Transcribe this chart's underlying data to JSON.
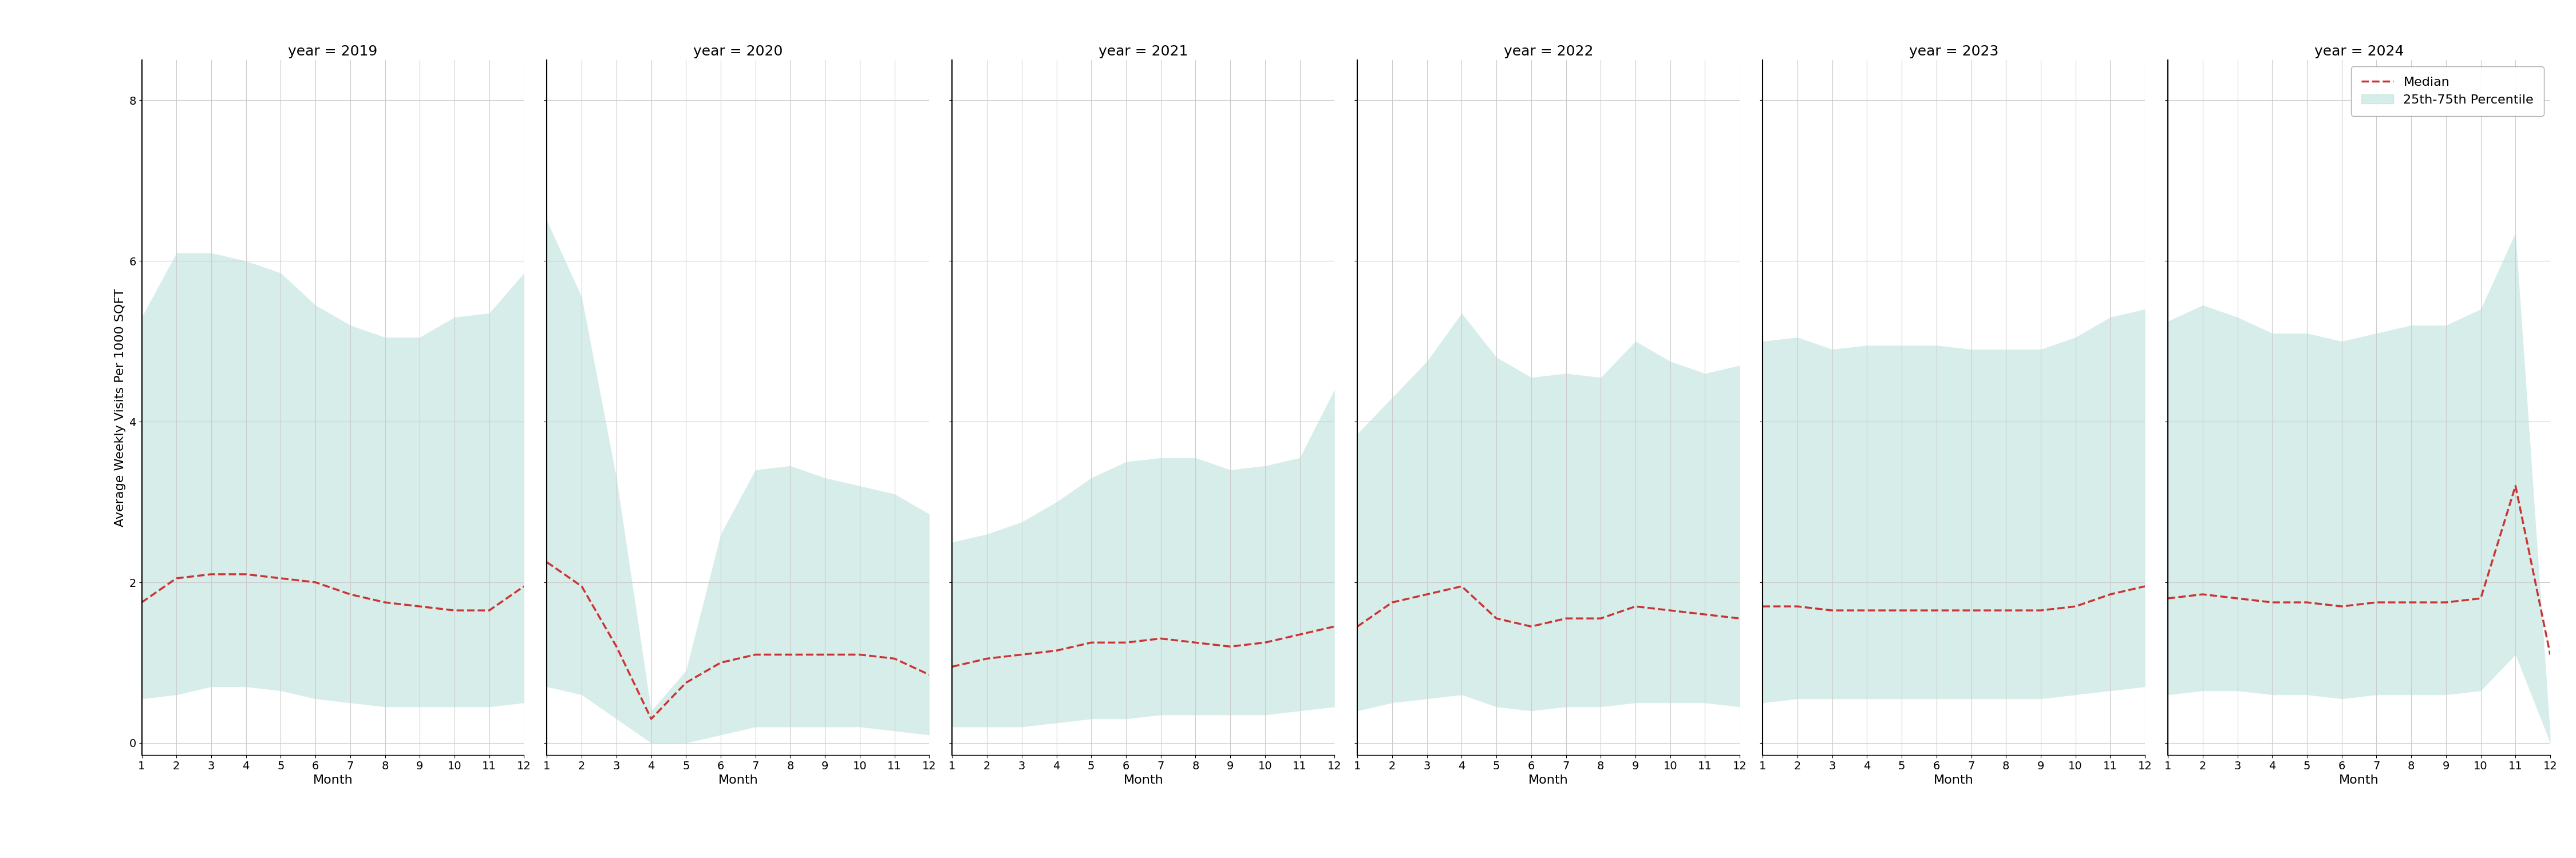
{
  "years": [
    2019,
    2020,
    2021,
    2022,
    2023,
    2024
  ],
  "months": [
    1,
    2,
    3,
    4,
    5,
    6,
    7,
    8,
    9,
    10,
    11,
    12
  ],
  "median": {
    "2019": [
      1.75,
      2.05,
      2.1,
      2.1,
      2.05,
      2.0,
      1.85,
      1.75,
      1.7,
      1.65,
      1.65,
      1.95
    ],
    "2020": [
      2.25,
      1.95,
      1.2,
      0.3,
      0.75,
      1.0,
      1.1,
      1.1,
      1.1,
      1.1,
      1.05,
      0.85
    ],
    "2021": [
      0.95,
      1.05,
      1.1,
      1.15,
      1.25,
      1.25,
      1.3,
      1.25,
      1.2,
      1.25,
      1.35,
      1.45
    ],
    "2022": [
      1.45,
      1.75,
      1.85,
      1.95,
      1.55,
      1.45,
      1.55,
      1.55,
      1.7,
      1.65,
      1.6,
      1.55
    ],
    "2023": [
      1.7,
      1.7,
      1.65,
      1.65,
      1.65,
      1.65,
      1.65,
      1.65,
      1.65,
      1.7,
      1.85,
      1.95
    ],
    "2024": [
      1.8,
      1.85,
      1.8,
      1.75,
      1.75,
      1.7,
      1.75,
      1.75,
      1.75,
      1.8,
      3.2,
      1.1
    ]
  },
  "p25": {
    "2019": [
      0.55,
      0.6,
      0.7,
      0.7,
      0.65,
      0.55,
      0.5,
      0.45,
      0.45,
      0.45,
      0.45,
      0.5
    ],
    "2020": [
      0.7,
      0.6,
      0.3,
      0.0,
      0.0,
      0.1,
      0.2,
      0.2,
      0.2,
      0.2,
      0.15,
      0.1
    ],
    "2021": [
      0.2,
      0.2,
      0.2,
      0.25,
      0.3,
      0.3,
      0.35,
      0.35,
      0.35,
      0.35,
      0.4,
      0.45
    ],
    "2022": [
      0.4,
      0.5,
      0.55,
      0.6,
      0.45,
      0.4,
      0.45,
      0.45,
      0.5,
      0.5,
      0.5,
      0.45
    ],
    "2023": [
      0.5,
      0.55,
      0.55,
      0.55,
      0.55,
      0.55,
      0.55,
      0.55,
      0.55,
      0.6,
      0.65,
      0.7
    ],
    "2024": [
      0.6,
      0.65,
      0.65,
      0.6,
      0.6,
      0.55,
      0.6,
      0.6,
      0.6,
      0.65,
      1.1,
      0.0
    ]
  },
  "p75": {
    "2019": [
      5.3,
      6.1,
      6.1,
      6.0,
      5.85,
      5.45,
      5.2,
      5.05,
      5.05,
      5.3,
      5.35,
      5.85
    ],
    "2020": [
      6.5,
      5.55,
      3.3,
      0.4,
      0.9,
      2.6,
      3.4,
      3.45,
      3.3,
      3.2,
      3.1,
      2.85
    ],
    "2021": [
      2.5,
      2.6,
      2.75,
      3.0,
      3.3,
      3.5,
      3.55,
      3.55,
      3.4,
      3.45,
      3.55,
      4.4
    ],
    "2022": [
      3.85,
      4.3,
      4.75,
      5.35,
      4.8,
      4.55,
      4.6,
      4.55,
      5.0,
      4.75,
      4.6,
      4.7
    ],
    "2023": [
      5.0,
      5.05,
      4.9,
      4.95,
      4.95,
      4.95,
      4.9,
      4.9,
      4.9,
      5.05,
      5.3,
      5.4
    ],
    "2024": [
      5.25,
      5.45,
      5.3,
      5.1,
      5.1,
      5.0,
      5.1,
      5.2,
      5.2,
      5.4,
      6.35,
      0.1
    ]
  },
  "fill_color": "#aeddd6",
  "fill_alpha": 0.5,
  "line_color": "#cc3333",
  "line_style": "--",
  "line_width": 2.5,
  "ylabel": "Average Weekly Visits Per 1000 SQFT",
  "xlabel": "Month",
  "ylim": [
    -0.15,
    8.5
  ],
  "yticks": [
    0,
    2,
    4,
    6,
    8
  ],
  "xticks": [
    1,
    2,
    3,
    4,
    5,
    6,
    7,
    8,
    9,
    10,
    11,
    12
  ],
  "background_color": "#ffffff",
  "grid_color": "#cccccc",
  "legend_labels": [
    "Median",
    "25th-75th Percentile"
  ],
  "title_fontsize": 18,
  "label_fontsize": 16,
  "tick_fontsize": 14,
  "legend_fontsize": 16
}
